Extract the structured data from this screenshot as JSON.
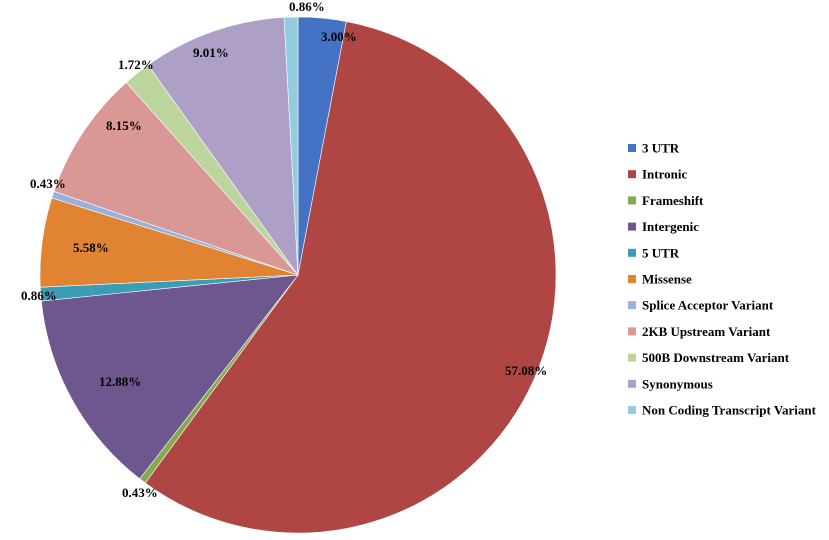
{
  "chart_data": {
    "type": "pie",
    "title": "",
    "start_angle_deg": 0,
    "direction": "clockwise",
    "legend_position": "right",
    "slices": [
      {
        "name": "3 UTR",
        "value": 3.0,
        "label": "3.00%",
        "color": "#4472c4"
      },
      {
        "name": "Intronic",
        "value": 57.08,
        "label": "57.08%",
        "color": "#b04643"
      },
      {
        "name": "Frameshift",
        "value": 0.43,
        "label": "0.43%",
        "color": "#86a84e"
      },
      {
        "name": "Intergenic",
        "value": 12.88,
        "label": "12.88%",
        "color": "#6e568f"
      },
      {
        "name": "5 UTR",
        "value": 0.86,
        "label": "0.86%",
        "color": "#3a9db5"
      },
      {
        "name": "Missense",
        "value": 5.58,
        "label": "5.58%",
        "color": "#e08433"
      },
      {
        "name": "Splice Acceptor Variant",
        "value": 0.43,
        "label": "0.43%",
        "color": "#96b1dc"
      },
      {
        "name": "2KB Upstream Variant",
        "value": 8.15,
        "label": "8.15%",
        "color": "#d99795"
      },
      {
        "name": "500B Downstream Variant",
        "value": 1.72,
        "label": "1.72%",
        "color": "#bcd59c"
      },
      {
        "name": "Synonymous",
        "value": 9.01,
        "label": "9.01%",
        "color": "#ae9fc7"
      },
      {
        "name": "Non Coding Transcript Variant",
        "value": 0.86,
        "label": "0.86%",
        "color": "#92cddd"
      }
    ]
  }
}
